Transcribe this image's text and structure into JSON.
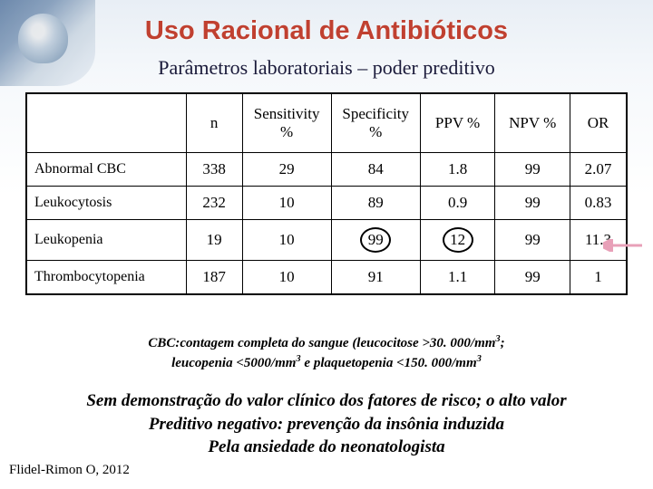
{
  "title": "Uso Racional de Antibióticos",
  "subtitle": "Parâmetros laboratoriais – poder preditivo",
  "table": {
    "headers": [
      "",
      "n",
      "Sensitivity\n%",
      "Specificity\n%",
      "PPV %",
      "NPV %",
      "OR"
    ],
    "rows": [
      {
        "label": "Abnormal CBC",
        "n": "338",
        "sens": "29",
        "spec": "84",
        "ppv": "1.8",
        "npv": "99",
        "or": "2.07",
        "circleSpec": false,
        "circlePpv": false
      },
      {
        "label": "Leukocytosis",
        "n": "232",
        "sens": "10",
        "spec": "89",
        "ppv": "0.9",
        "npv": "99",
        "or": "0.83",
        "circleSpec": false,
        "circlePpv": false
      },
      {
        "label": "Leukopenia",
        "n": "19",
        "sens": "10",
        "spec": "99",
        "ppv": "12",
        "npv": "99",
        "or": "11.3",
        "circleSpec": true,
        "circlePpv": true
      },
      {
        "label": "Thrombocytopenia",
        "n": "187",
        "sens": "10",
        "spec": "91",
        "ppv": "1.1",
        "npv": "99",
        "or": "1",
        "circleSpec": false,
        "circlePpv": false
      }
    ],
    "colWidths": [
      "170px",
      "60px",
      "95px",
      "95px",
      "80px",
      "80px",
      "60px"
    ]
  },
  "caption_l1": "CBC:contagem completa do sangue (leucocitose >30. 000/mm",
  "caption_l1_tail": ";",
  "caption_l2_a": "leucopenia <5000/mm",
  "caption_l2_b": " e plaquetopenia <150. 000/mm",
  "conclusion_l1": "Sem demonstração do valor clínico dos fatores de risco; o alto valor",
  "conclusion_l2": "Preditivo negativo: prevenção da insônia induzida",
  "conclusion_l3": "Pela ansiedade do neonatologista",
  "citation": "Flidel-Rimon O, 2012",
  "colors": {
    "title": "#c04030",
    "text": "#1a1a3a",
    "arrow": "#e8a0b8"
  }
}
